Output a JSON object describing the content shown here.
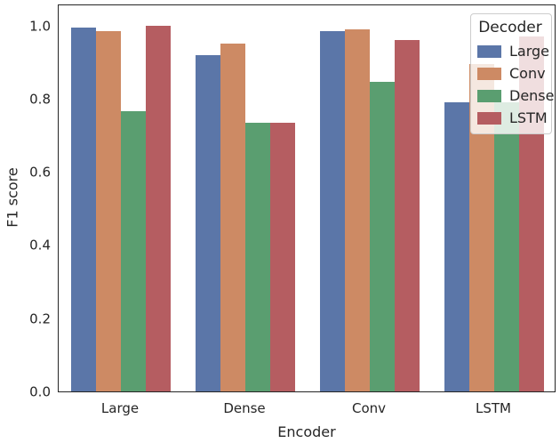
{
  "chart_data": {
    "type": "bar",
    "title": "",
    "xlabel": "Encoder",
    "ylabel": "F1 score",
    "categories": [
      "Large",
      "Dense",
      "Conv",
      "LSTM"
    ],
    "series": [
      {
        "name": "Large",
        "color": "#5B76A8",
        "values": [
          0.995,
          0.92,
          0.985,
          0.79
        ]
      },
      {
        "name": "Conv",
        "color": "#CD8A64",
        "values": [
          0.985,
          0.95,
          0.99,
          0.895
        ]
      },
      {
        "name": "Dense",
        "color": "#5A9E70",
        "values": [
          0.765,
          0.735,
          0.845,
          0.79
        ]
      },
      {
        "name": "LSTM",
        "color": "#B55D61",
        "values": [
          1.0,
          0.735,
          0.96,
          0.97
        ]
      }
    ],
    "ylim": [
      0,
      1.06
    ],
    "yticks": [
      "0.0",
      "0.2",
      "0.4",
      "0.6",
      "0.8",
      "1.0"
    ],
    "grid": false,
    "legend": {
      "title": "Decoder",
      "position": "upper right",
      "entries": [
        "Large",
        "Conv",
        "Dense",
        "LSTM"
      ]
    }
  },
  "colors": {
    "spine": "#262626",
    "text": "#262626",
    "legend_border": "#cccccc"
  }
}
